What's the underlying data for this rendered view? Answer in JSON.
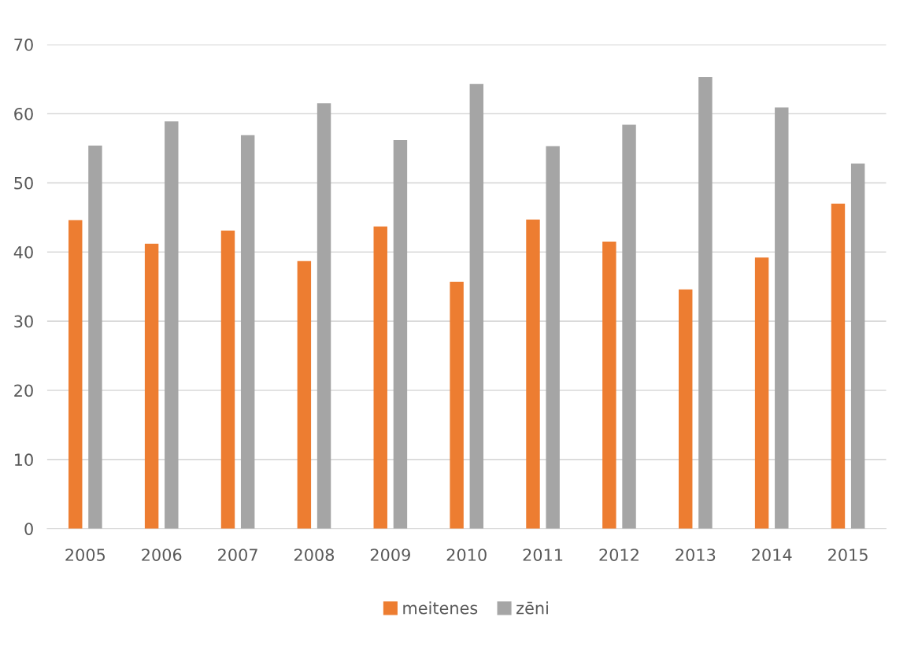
{
  "chart_data": {
    "type": "bar",
    "categories": [
      "2005",
      "2006",
      "2007",
      "2008",
      "2009",
      "2010",
      "2011",
      "2012",
      "2013",
      "2014",
      "2015"
    ],
    "series": [
      {
        "name": "meitenes",
        "color": "#ed7d31",
        "values": [
          44.6,
          41.2,
          43.1,
          38.7,
          43.7,
          35.7,
          44.7,
          41.5,
          34.6,
          39.2,
          47.0
        ]
      },
      {
        "name": "zēni",
        "color": "#a5a5a5",
        "values": [
          55.4,
          58.9,
          56.9,
          61.5,
          56.2,
          64.3,
          55.3,
          58.4,
          65.3,
          60.9,
          52.8
        ]
      }
    ],
    "ylim": [
      0,
      70
    ],
    "yticks": [
      0,
      10,
      20,
      30,
      40,
      50,
      60,
      70
    ],
    "grid": "y",
    "legend": "bottom"
  }
}
